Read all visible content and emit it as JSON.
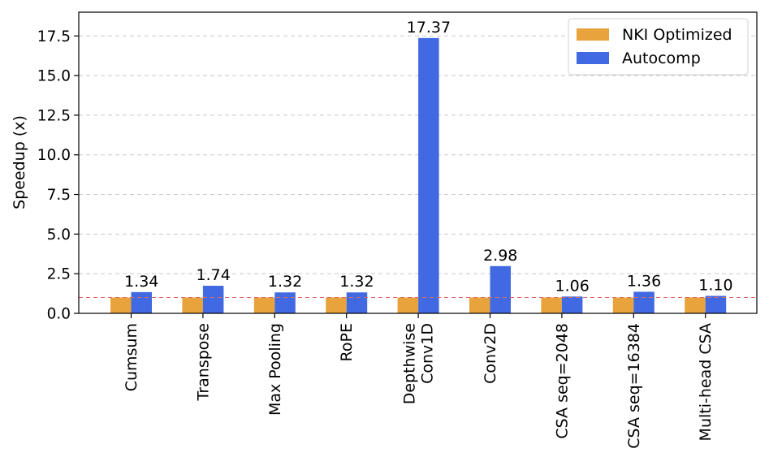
{
  "chart_data": {
    "type": "bar",
    "categories": [
      [
        "Cumsum"
      ],
      [
        "Transpose"
      ],
      [
        "Max Pooling"
      ],
      [
        "RoPE"
      ],
      [
        "Depthwise",
        "Conv1D"
      ],
      [
        "Conv2D"
      ],
      [
        "CSA seq=2048"
      ],
      [
        "CSA seq=16384"
      ],
      [
        "Multi-head CSA"
      ]
    ],
    "series": [
      {
        "name": "NKI Optimized",
        "color": "#E8A33D",
        "values": [
          1,
          1,
          1,
          1,
          1,
          1,
          1,
          1,
          1
        ]
      },
      {
        "name": "Autocomp",
        "color": "#4169E1",
        "values": [
          1.34,
          1.74,
          1.32,
          1.32,
          17.37,
          2.98,
          1.06,
          1.36,
          1.1
        ]
      }
    ],
    "data_labels": [
      "1.34",
      "1.74",
      "1.32",
      "1.32",
      "17.37",
      "2.98",
      "1.06",
      "1.36",
      "1.10"
    ],
    "ylabel": "Speedup (x)",
    "ylim": [
      0,
      19
    ],
    "yticks": [
      "0.0",
      "2.5",
      "5.0",
      "7.5",
      "10.0",
      "12.5",
      "15.0",
      "17.5"
    ],
    "reference_line": {
      "value": 1.0,
      "color": "#E06666",
      "style": "dashed"
    },
    "grid": "y dashed",
    "legend_position": "top-right"
  }
}
